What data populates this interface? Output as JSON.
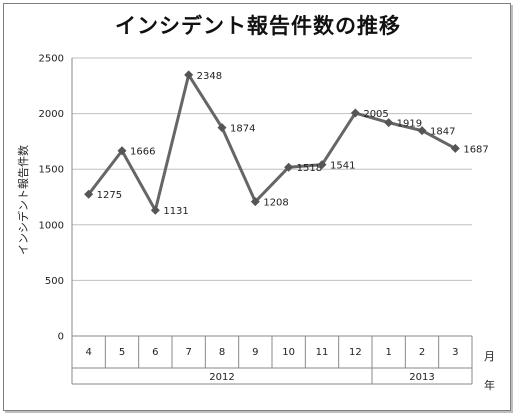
{
  "chart_data": {
    "type": "line",
    "title": "インシデント報告件数の推移",
    "ylabel": "インシデント報告件数",
    "x_unit_month": "月",
    "x_unit_year": "年",
    "categories": [
      "4",
      "5",
      "6",
      "7",
      "8",
      "9",
      "10",
      "11",
      "12",
      "1",
      "2",
      "3"
    ],
    "years": [
      {
        "label": "2012",
        "start": 0,
        "end": 8
      },
      {
        "label": "2013",
        "start": 9,
        "end": 11
      }
    ],
    "values": [
      1275,
      1666,
      1131,
      2348,
      1874,
      1208,
      1518,
      1541,
      2005,
      1919,
      1847,
      1687
    ],
    "ylim": [
      0,
      2500
    ],
    "yticks": [
      0,
      500,
      1000,
      1500,
      2000,
      2500
    ],
    "grid": true,
    "colors": {
      "line": "#666666",
      "marker": "#555555",
      "grid": "#c0c0c0"
    }
  }
}
